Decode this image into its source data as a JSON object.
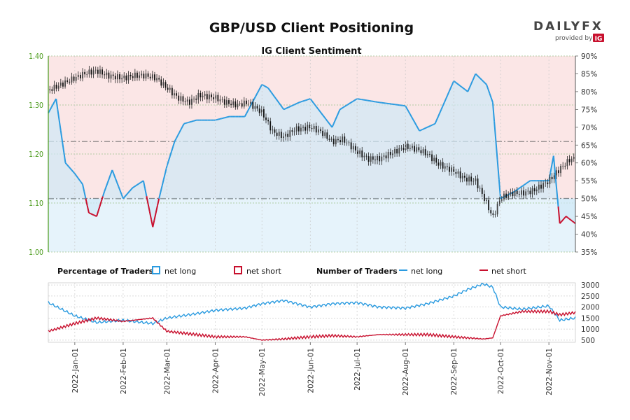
{
  "brand": {
    "name": "DAILYFX",
    "provided_by": "provided by",
    "provider": "IG"
  },
  "colors": {
    "long": "#2b9be0",
    "short": "#c8102e",
    "long_fill": "#e6f3fb",
    "short_fill": "#fbe6e6",
    "candle_up": "#444444",
    "candle_down": "#111111",
    "left_axis": "#4a9a1a"
  },
  "chart_data": [
    {
      "type": "line",
      "title": "GBP/USD Client Positioning",
      "subtitle": "IG Client Sentiment",
      "price_axis": {
        "min": 1.0,
        "max": 1.4,
        "ticks": [
          "1.00",
          "1.10",
          "1.20",
          "1.30",
          "1.40"
        ],
        "grid": true
      },
      "pct_axis": {
        "min": 35,
        "max": 90,
        "ticks": [
          "35%",
          "40%",
          "45%",
          "50%",
          "55%",
          "60%",
          "65%",
          "70%",
          "75%",
          "80%",
          "85%",
          "90%"
        ]
      },
      "reference_lines": [
        {
          "pct": 50
        },
        {
          "pct": 66
        }
      ],
      "x_range": [
        "2021-12-15",
        "2022-11-18"
      ],
      "x_ticks": [
        "2022-Jan-01",
        "2022-Feb-01",
        "2022-Mar-01",
        "2022-Apr-01",
        "2022-May-01",
        "2022-Jun-01",
        "2022-Jul-01",
        "2022-Aug-01",
        "2022-Sep-01",
        "2022-Oct-01",
        "2022-Nov-01"
      ],
      "series": [
        {
          "kind": "price",
          "x": [
            "2021-12-15",
            "2021-12-22",
            "2022-01-01",
            "2022-01-08",
            "2022-01-15",
            "2022-01-22",
            "2022-02-01",
            "2022-02-08",
            "2022-02-15",
            "2022-02-22",
            "2022-03-01",
            "2022-03-08",
            "2022-03-15",
            "2022-03-22",
            "2022-04-01",
            "2022-04-08",
            "2022-04-15",
            "2022-04-22",
            "2022-05-01",
            "2022-05-08",
            "2022-05-15",
            "2022-05-22",
            "2022-06-01",
            "2022-06-08",
            "2022-06-15",
            "2022-06-22",
            "2022-07-01",
            "2022-07-08",
            "2022-07-15",
            "2022-07-22",
            "2022-08-01",
            "2022-08-08",
            "2022-08-15",
            "2022-08-22",
            "2022-09-01",
            "2022-09-08",
            "2022-09-15",
            "2022-09-22",
            "2022-09-26",
            "2022-10-01",
            "2022-10-08",
            "2022-10-15",
            "2022-10-22",
            "2022-11-01",
            "2022-11-08",
            "2022-11-15",
            "2022-11-18"
          ],
          "values": [
            1.33,
            1.34,
            1.355,
            1.365,
            1.37,
            1.36,
            1.355,
            1.36,
            1.36,
            1.355,
            1.335,
            1.315,
            1.305,
            1.32,
            1.315,
            1.305,
            1.3,
            1.305,
            1.285,
            1.245,
            1.235,
            1.25,
            1.255,
            1.245,
            1.225,
            1.23,
            1.205,
            1.19,
            1.19,
            1.2,
            1.215,
            1.21,
            1.2,
            1.18,
            1.165,
            1.15,
            1.145,
            1.1,
            1.07,
            1.11,
            1.12,
            1.12,
            1.125,
            1.145,
            1.17,
            1.19,
            1.19
          ]
        },
        {
          "kind": "sentiment_pct",
          "name": "net long / net short",
          "x": [
            "2021-12-15",
            "2021-12-20",
            "2021-12-26",
            "2022-01-01",
            "2022-01-06",
            "2022-01-10",
            "2022-01-15",
            "2022-01-20",
            "2022-01-25",
            "2022-02-01",
            "2022-02-07",
            "2022-02-14",
            "2022-02-20",
            "2022-02-24",
            "2022-03-01",
            "2022-03-06",
            "2022-03-12",
            "2022-03-20",
            "2022-04-01",
            "2022-04-10",
            "2022-04-20",
            "2022-05-01",
            "2022-05-05",
            "2022-05-15",
            "2022-05-25",
            "2022-06-01",
            "2022-06-15",
            "2022-06-20",
            "2022-07-01",
            "2022-07-15",
            "2022-08-01",
            "2022-08-10",
            "2022-08-20",
            "2022-09-01",
            "2022-09-10",
            "2022-09-15",
            "2022-09-22",
            "2022-09-26",
            "2022-10-01",
            "2022-10-10",
            "2022-10-20",
            "2022-11-01",
            "2022-11-04",
            "2022-11-08",
            "2022-11-12",
            "2022-11-18"
          ],
          "values": [
            74,
            78,
            60,
            57,
            54,
            46,
            45,
            52,
            58,
            50,
            53,
            55,
            42,
            50,
            59,
            66,
            71,
            72,
            72,
            73,
            73,
            82,
            81,
            75,
            77,
            78,
            70,
            75,
            78,
            77,
            76,
            69,
            71,
            83,
            80,
            85,
            82,
            77,
            50,
            52,
            55,
            55,
            62,
            43,
            45,
            43
          ]
        }
      ]
    },
    {
      "type": "line",
      "title": "Number of Traders",
      "y_ticks": [
        "500",
        "1000",
        "1500",
        "2000",
        "2500",
        "3000"
      ],
      "ylim": [
        400,
        3100
      ],
      "legend": {
        "pct_label": "Percentage of Traders",
        "count_label": "Number of Traders",
        "long_label": "net long",
        "short_label": "net short"
      },
      "series": [
        {
          "name": "net long",
          "x": [
            "2021-12-15",
            "2022-01-01",
            "2022-01-15",
            "2022-02-01",
            "2022-02-20",
            "2022-03-01",
            "2022-03-20",
            "2022-04-01",
            "2022-04-20",
            "2022-05-01",
            "2022-05-15",
            "2022-06-01",
            "2022-06-15",
            "2022-07-01",
            "2022-07-15",
            "2022-08-01",
            "2022-08-15",
            "2022-09-01",
            "2022-09-10",
            "2022-09-20",
            "2022-09-26",
            "2022-10-01",
            "2022-10-15",
            "2022-11-01",
            "2022-11-08",
            "2022-11-18"
          ],
          "values": [
            2200,
            1600,
            1300,
            1400,
            1250,
            1500,
            1700,
            1850,
            1950,
            2150,
            2300,
            2000,
            2150,
            2200,
            2000,
            1950,
            2150,
            2500,
            2800,
            3050,
            2900,
            2000,
            1900,
            2050,
            1400,
            1500
          ]
        },
        {
          "name": "net short",
          "x": [
            "2021-12-15",
            "2022-01-01",
            "2022-01-15",
            "2022-02-01",
            "2022-02-20",
            "2022-03-01",
            "2022-03-20",
            "2022-04-01",
            "2022-04-20",
            "2022-05-01",
            "2022-05-15",
            "2022-06-01",
            "2022-06-15",
            "2022-07-01",
            "2022-07-15",
            "2022-08-01",
            "2022-08-15",
            "2022-09-01",
            "2022-09-10",
            "2022-09-20",
            "2022-09-26",
            "2022-10-01",
            "2022-10-15",
            "2022-11-01",
            "2022-11-08",
            "2022-11-18"
          ],
          "values": [
            900,
            1250,
            1500,
            1350,
            1500,
            900,
            750,
            650,
            650,
            500,
            550,
            650,
            700,
            650,
            750,
            750,
            750,
            650,
            600,
            550,
            600,
            1600,
            1800,
            1800,
            1650,
            1750
          ]
        }
      ]
    }
  ]
}
